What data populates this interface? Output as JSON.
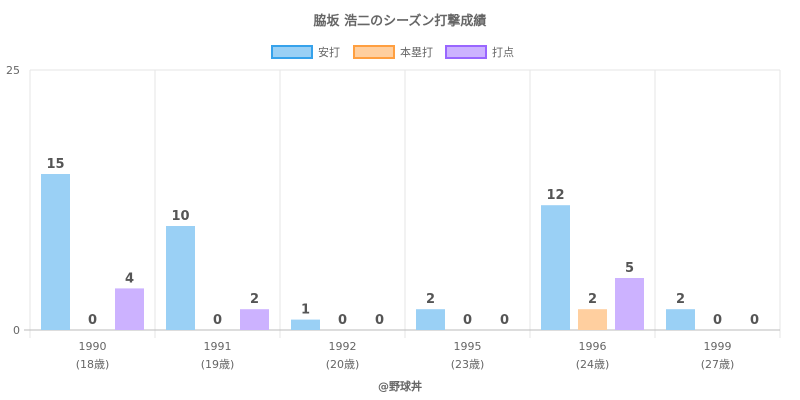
{
  "chart_data": {
    "type": "bar",
    "title": "脇坂 浩二のシーズン打撃成績",
    "categories": [
      "1990",
      "1991",
      "1992",
      "1995",
      "1996",
      "1999"
    ],
    "category_sublabels": [
      "(18歳)",
      "(19歳)",
      "(20歳)",
      "(23歳)",
      "(24歳)",
      "(27歳)"
    ],
    "series": [
      {
        "name": "安打",
        "values": [
          15,
          10,
          1,
          2,
          12,
          2
        ],
        "color": "#9ad0f5",
        "border": "#36a2eb"
      },
      {
        "name": "本塁打",
        "values": [
          0,
          0,
          0,
          0,
          2,
          0
        ],
        "color": "#ffcf9f",
        "border": "#ff9f40"
      },
      {
        "name": "打点",
        "values": [
          4,
          2,
          0,
          0,
          5,
          0
        ],
        "color": "#ccb2ff",
        "border": "#9966ff"
      }
    ],
    "ylim": [
      0,
      25
    ],
    "yticks": [
      "0",
      "25"
    ],
    "legend_position": "top",
    "grid": true,
    "credit": "@野球丼"
  }
}
